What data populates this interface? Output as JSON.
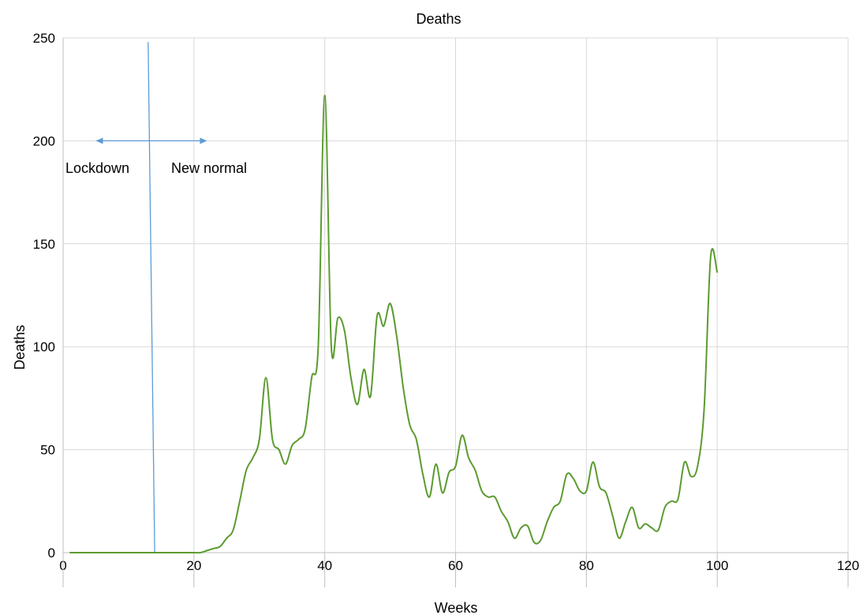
{
  "chart_data": {
    "type": "line",
    "title": "Deaths",
    "xlabel": "Weeks",
    "ylabel": "Deaths",
    "xlim": [
      0,
      120
    ],
    "ylim": [
      0,
      250
    ],
    "x_ticks": [
      "0",
      "20",
      "40",
      "60",
      "80",
      "100",
      "120"
    ],
    "y_ticks": [
      "0",
      "50",
      "100",
      "150",
      "200",
      "250"
    ],
    "grid": "vertical and horizontal",
    "series": [
      {
        "color": "#5b9b2f",
        "x": [
          1,
          2,
          3,
          4,
          5,
          6,
          7,
          8,
          9,
          10,
          11,
          12,
          13,
          14,
          15,
          16,
          17,
          18,
          19,
          20,
          21,
          22,
          23,
          24,
          25,
          26,
          27,
          28,
          29,
          30,
          31,
          32,
          33,
          34,
          35,
          36,
          37,
          38,
          39,
          40,
          41,
          42,
          43,
          44,
          45,
          46,
          47,
          48,
          49,
          50,
          51,
          52,
          53,
          54,
          55,
          56,
          57,
          58,
          59,
          60,
          61,
          62,
          63,
          64,
          65,
          66,
          67,
          68,
          69,
          70,
          71,
          72,
          73,
          74,
          75,
          76,
          77,
          78,
          79,
          80,
          81,
          82,
          83,
          84,
          85,
          86,
          87,
          88,
          89,
          90,
          91,
          92,
          93,
          94,
          95,
          96,
          97,
          98,
          99,
          100
        ],
        "values": [
          0,
          0,
          0,
          0,
          0,
          0,
          0,
          0,
          0,
          0,
          0,
          0,
          0,
          0,
          0,
          0,
          0,
          0,
          0,
          0,
          0,
          1,
          2,
          3,
          7,
          11,
          25,
          40,
          46,
          55,
          85,
          55,
          50,
          43,
          52,
          55,
          60,
          85,
          100,
          222,
          100,
          114,
          108,
          85,
          72,
          89,
          76,
          115,
          110,
          121,
          105,
          80,
          62,
          55,
          38,
          27,
          43,
          29,
          39,
          42,
          57,
          46,
          40,
          30,
          27,
          27,
          20,
          15,
          7,
          12,
          13,
          5,
          6,
          15,
          22,
          25,
          38,
          36,
          30,
          30,
          44,
          32,
          29,
          18,
          7,
          15,
          22,
          12,
          14,
          12,
          11,
          22,
          25,
          26,
          44,
          37,
          42,
          70,
          144,
          136
        ]
      }
    ],
    "annotations": {
      "lockdown_label": "Lockdown",
      "new_normal_label": "New normal",
      "divider_x": [
        13,
        14
      ],
      "divider_top_y": 248,
      "arrow_y": 200,
      "arrow_range": [
        5,
        22
      ]
    }
  }
}
